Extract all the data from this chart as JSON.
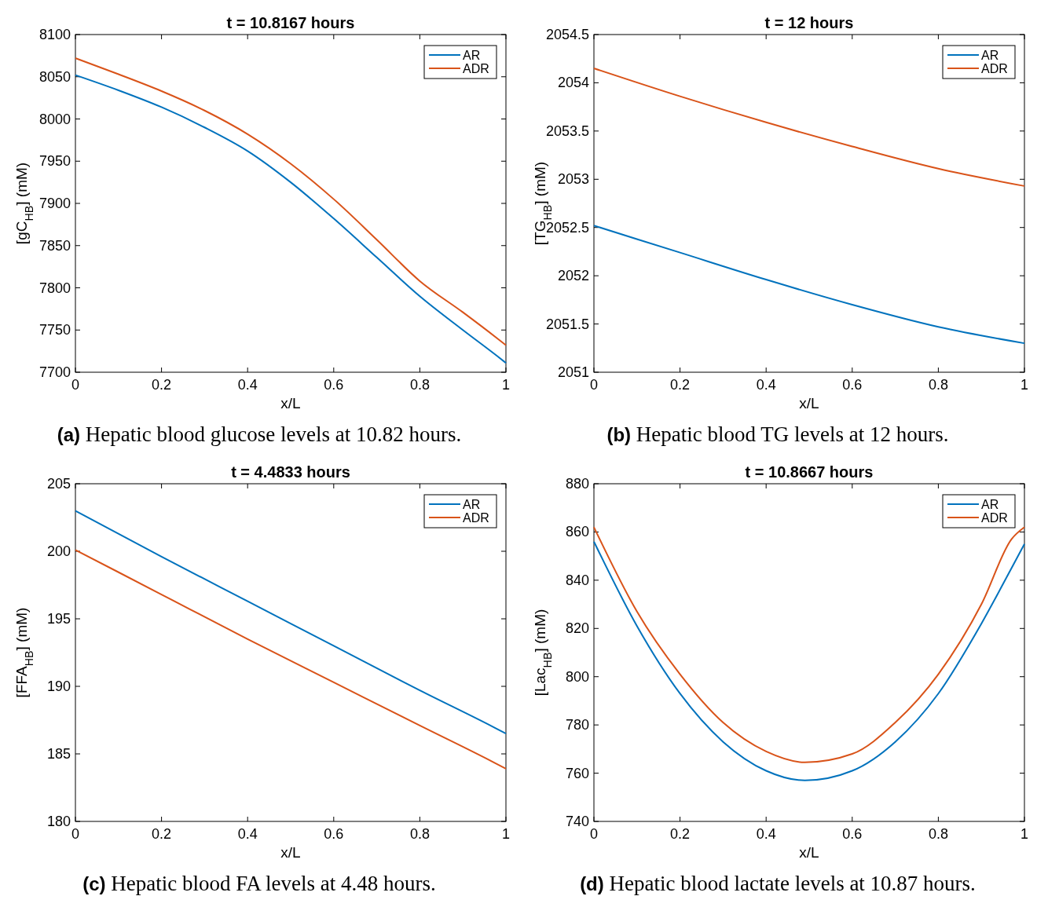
{
  "chart_data": [
    {
      "type": "line",
      "title": "t = 10.8167 hours",
      "xlabel": "x/L",
      "ylabel": "[gC$_{HB}$] (mM)",
      "xlim": [
        0,
        1
      ],
      "xticks": [
        0,
        0.2,
        0.4,
        0.6,
        0.8,
        1
      ],
      "ylim": [
        7700,
        8100
      ],
      "yticks": [
        7700,
        7750,
        7800,
        7850,
        7900,
        7950,
        8000,
        8050,
        8100
      ],
      "legend": "top right",
      "grid": false,
      "annotations": [
        "(a) Hepatic blood glucose levels at 10.82 hours."
      ],
      "x": [
        0,
        0.1,
        0.2,
        0.3,
        0.4,
        0.5,
        0.6,
        0.7,
        0.8,
        0.9,
        0.98,
        1
      ],
      "series": [
        {
          "name": "AR",
          "color": "#0072bd",
          "values": [
            8052,
            8034,
            8014,
            7990,
            7962,
            7925,
            7882,
            7836,
            7790,
            7750,
            7719,
            7711
          ]
        },
        {
          "name": "ADR",
          "color": "#d95319",
          "values": [
            8072,
            8053,
            8033,
            8010,
            7982,
            7947,
            7905,
            7857,
            7808,
            7771,
            7740,
            7732
          ]
        }
      ]
    },
    {
      "type": "line",
      "title": "t = 12 hours",
      "xlabel": "x/L",
      "ylabel": "[TG$_{HB}$] (mM)",
      "xlim": [
        0,
        1
      ],
      "xticks": [
        0,
        0.2,
        0.4,
        0.6,
        0.8,
        1
      ],
      "ylim": [
        2051,
        2054.5
      ],
      "yticks": [
        2051,
        2051.5,
        2052,
        2052.5,
        2053,
        2053.5,
        2054,
        2054.5
      ],
      "legend": "top right",
      "grid": false,
      "annotations": [
        "(b) Hepatic blood TG levels at 12 hours."
      ],
      "x": [
        0,
        0.2,
        0.4,
        0.6,
        0.8,
        1
      ],
      "series": [
        {
          "name": "AR",
          "color": "#0072bd",
          "values": [
            2052.52,
            2052.24,
            2051.96,
            2051.7,
            2051.47,
            2051.3
          ]
        },
        {
          "name": "ADR",
          "color": "#d95319",
          "values": [
            2054.15,
            2053.86,
            2053.59,
            2053.34,
            2053.11,
            2052.93
          ]
        }
      ]
    },
    {
      "type": "line",
      "title": "t = 4.4833 hours",
      "xlabel": "x/L",
      "ylabel": "[FFA$_{HB}$] (mM)",
      "xlim": [
        0,
        1
      ],
      "xticks": [
        0,
        0.2,
        0.4,
        0.6,
        0.8,
        1
      ],
      "ylim": [
        180,
        205
      ],
      "yticks": [
        180,
        185,
        190,
        195,
        200,
        205
      ],
      "legend": "top right",
      "grid": false,
      "annotations": [
        "(c) Hepatic blood FA levels at 4.48 hours."
      ],
      "x": [
        0,
        0.2,
        0.4,
        0.6,
        0.8,
        0.97,
        1
      ],
      "series": [
        {
          "name": "AR",
          "color": "#0072bd",
          "values": [
            203,
            199.6,
            196.3,
            193,
            189.7,
            187,
            186.5
          ]
        },
        {
          "name": "ADR",
          "color": "#d95319",
          "values": [
            200.1,
            196.8,
            193.5,
            190.3,
            187.1,
            184.4,
            183.9
          ]
        }
      ]
    },
    {
      "type": "line",
      "title": "t = 10.8667 hours",
      "xlabel": "x/L",
      "ylabel": "[Lac$_{HB}$] (mM)",
      "xlim": [
        0,
        1
      ],
      "xticks": [
        0,
        0.2,
        0.4,
        0.6,
        0.8,
        1
      ],
      "ylim": [
        740,
        880
      ],
      "yticks": [
        740,
        760,
        780,
        800,
        820,
        840,
        860,
        880
      ],
      "legend": "top right",
      "grid": false,
      "annotations": [
        "(d) Hepatic blood lactate levels at 10.87 hours."
      ],
      "x": [
        0,
        0.1,
        0.2,
        0.3,
        0.4,
        0.49,
        0.6,
        0.7,
        0.8,
        0.9,
        0.97,
        1
      ],
      "series": [
        {
          "name": "AR",
          "color": "#0072bd",
          "values": [
            856,
            821,
            793,
            773,
            761,
            757,
            761,
            773,
            793,
            822,
            845,
            855
          ]
        },
        {
          "name": "ADR",
          "color": "#d95319",
          "values": [
            862,
            827,
            801,
            781,
            769,
            764.5,
            768,
            781,
            801,
            830,
            857,
            862
          ]
        }
      ]
    }
  ]
}
